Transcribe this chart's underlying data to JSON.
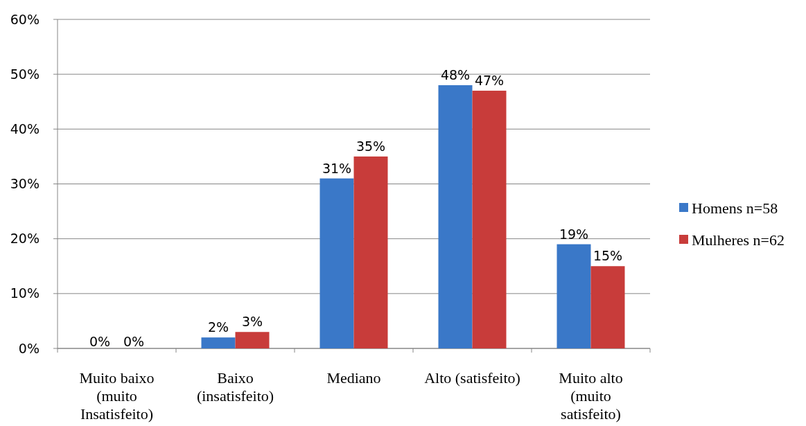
{
  "chart_data": {
    "type": "bar",
    "categories": [
      "Muito baixo (muito Insatisfeito)",
      "Baixo (insatisfeito)",
      "Mediano",
      "Alto (satisfeito)",
      "Muito alto (muito satisfeito)"
    ],
    "series": [
      {
        "name": "Homens n=58",
        "color": "#3a78c8",
        "values": [
          0,
          2,
          31,
          48,
          19
        ],
        "value_labels": [
          "0%",
          "2%",
          "31%",
          "48%",
          "19%"
        ]
      },
      {
        "name": "Mulheres n=62",
        "color": "#c83c3a",
        "values": [
          0,
          3,
          35,
          47,
          15
        ],
        "value_labels": [
          "0%",
          "3%",
          "35%",
          "47%",
          "15%"
        ]
      }
    ],
    "ylim": [
      0,
      60
    ],
    "yticks": [
      {
        "value": 0,
        "label": "0%"
      },
      {
        "value": 10,
        "label": "10%"
      },
      {
        "value": 20,
        "label": "20%"
      },
      {
        "value": 30,
        "label": "30%"
      },
      {
        "value": 40,
        "label": "40%"
      },
      {
        "value": 50,
        "label": "50%"
      },
      {
        "value": 60,
        "label": "60%"
      }
    ],
    "grid": "y",
    "legend": "right"
  }
}
